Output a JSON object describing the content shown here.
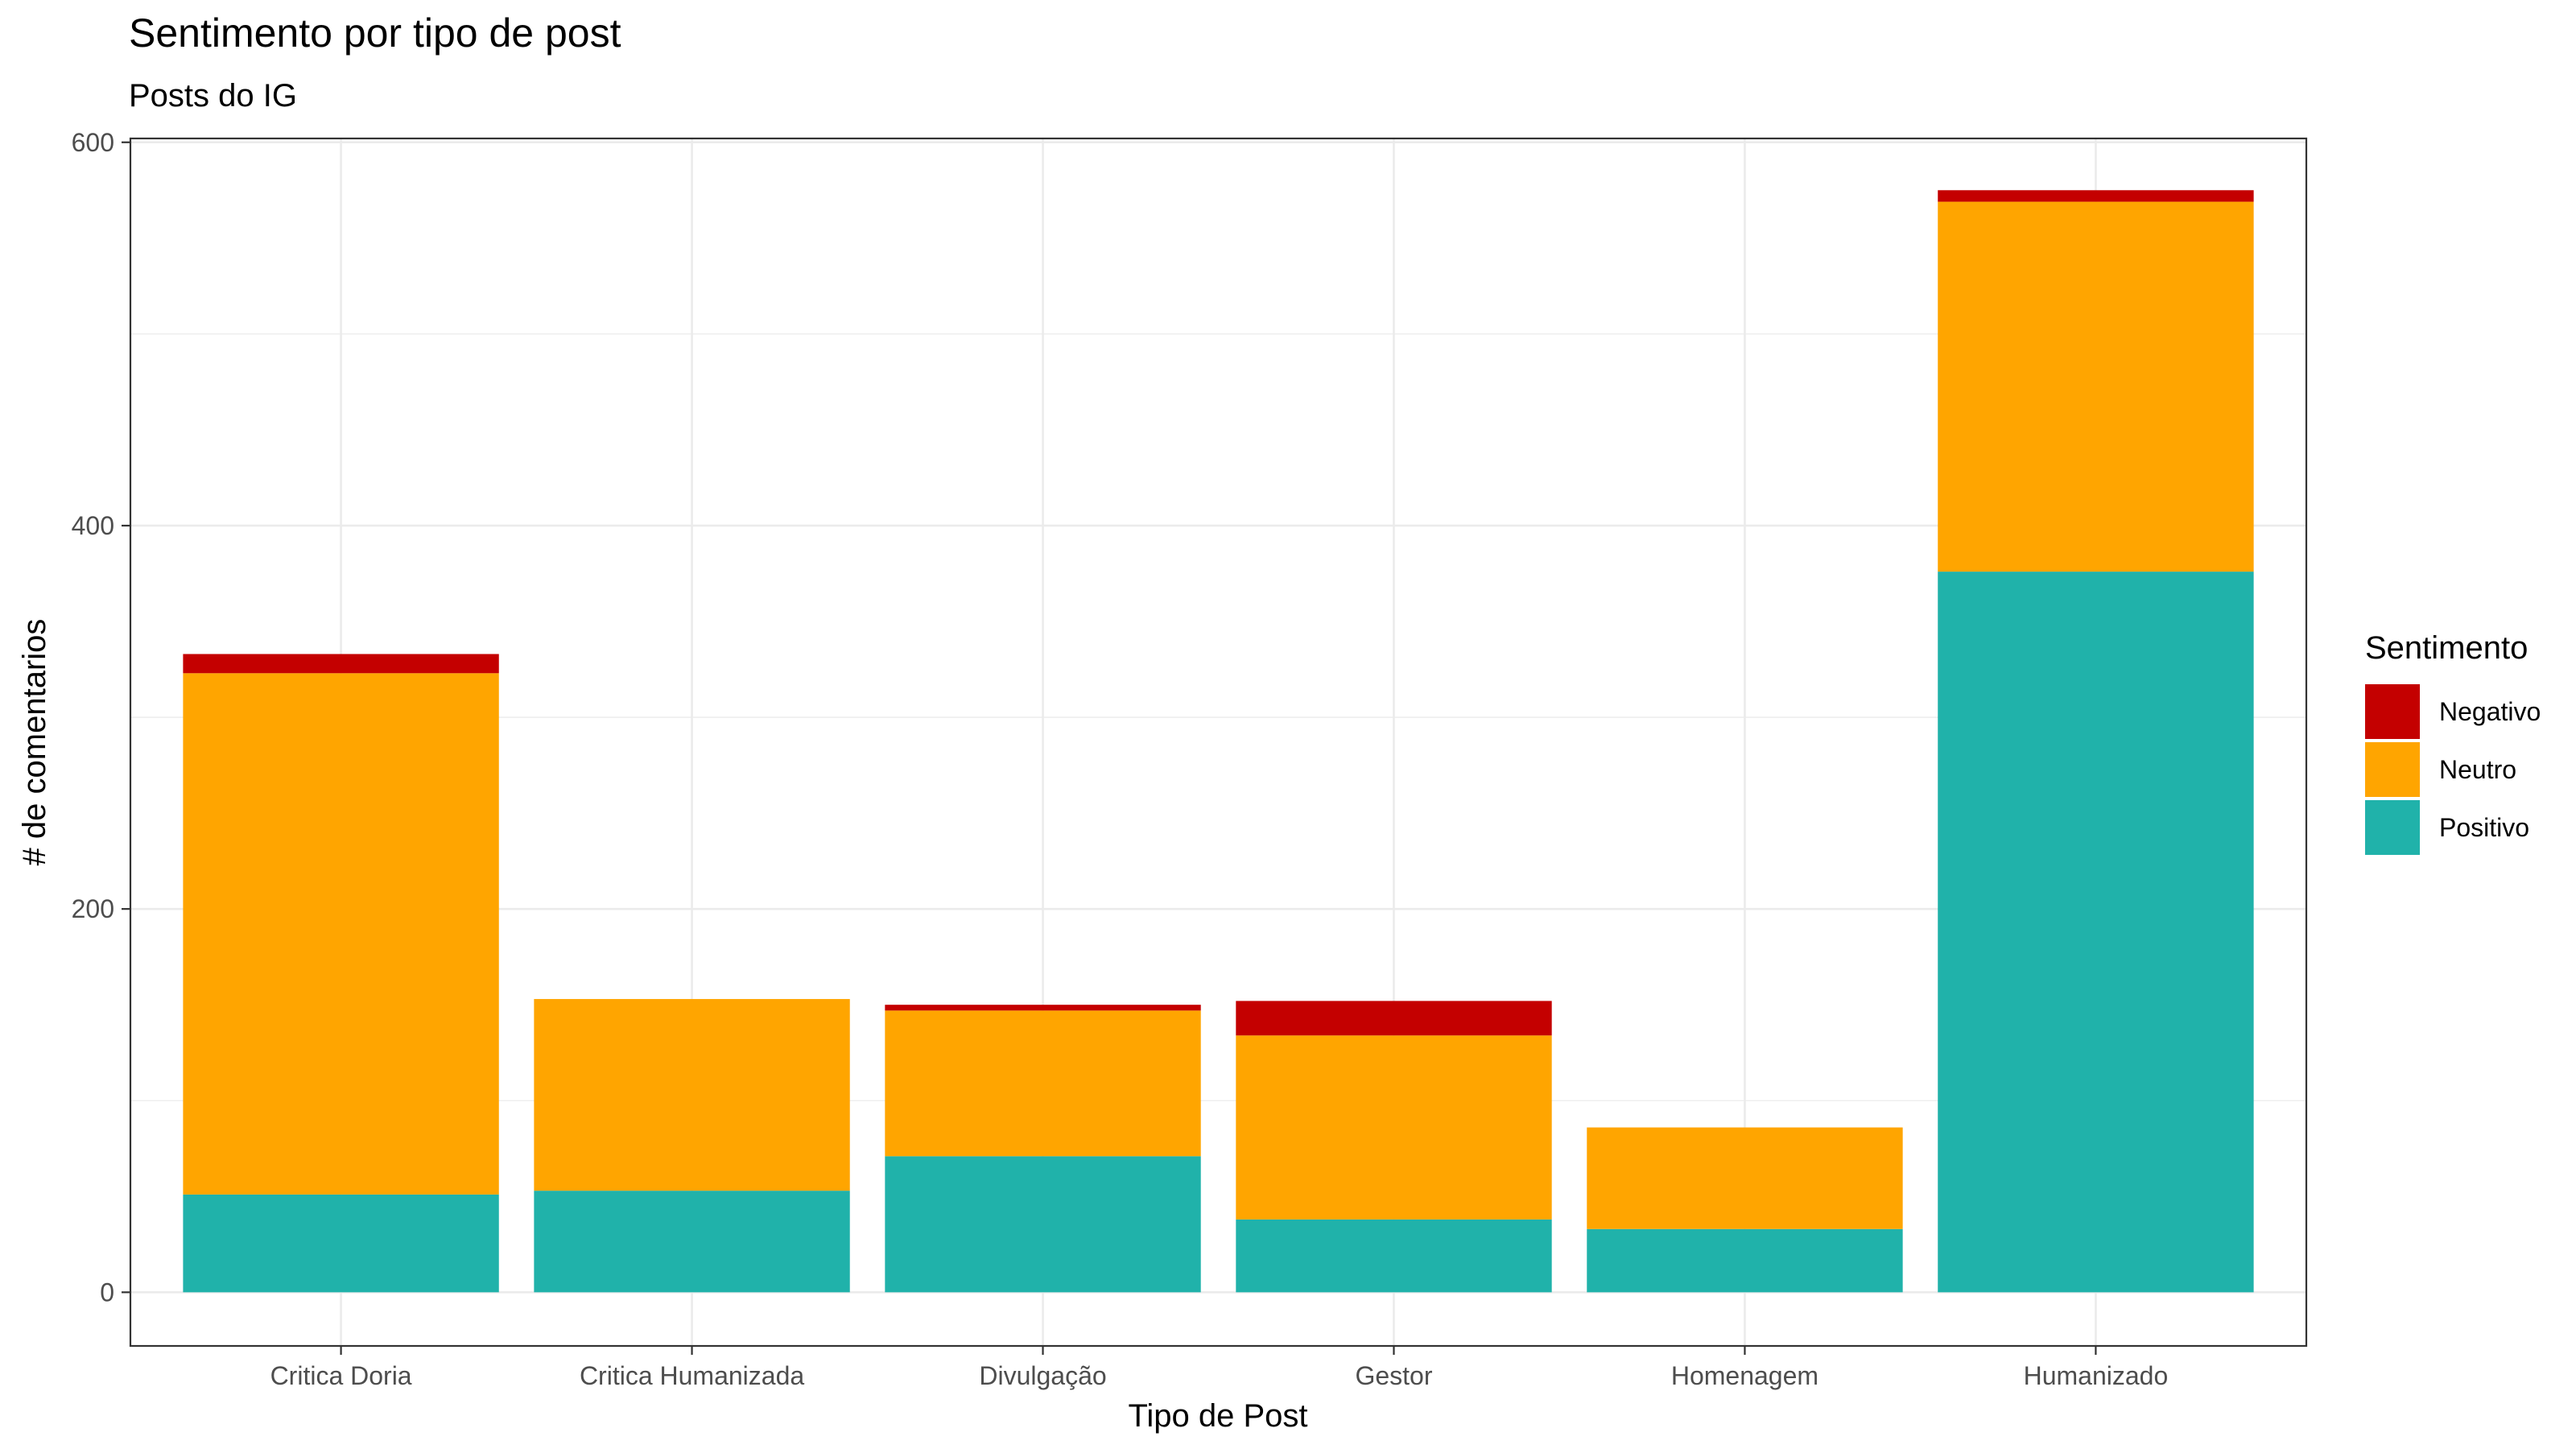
{
  "chart_data": {
    "type": "bar",
    "stacked": true,
    "title": "Sentimento por tipo de post",
    "subtitle": "Posts do  IG",
    "xlabel": "Tipo de Post",
    "ylabel": "# de comentarios",
    "categories": [
      "Critica Doria",
      "Critica Humanizada",
      "Divulgação",
      "Gestor",
      "Homenagem",
      "Humanizado"
    ],
    "ylim": [
      -28,
      602
    ],
    "yticks": [
      0,
      200,
      400,
      600
    ],
    "grid": true,
    "legend_title": "Sentimento",
    "legend_position": "right",
    "series": [
      {
        "name": "Positivo",
        "color": "#20B2AA",
        "values": [
          51,
          53,
          71,
          38,
          33,
          376
        ]
      },
      {
        "name": "Neutro",
        "color": "#FFA500",
        "values": [
          272,
          100,
          76,
          96,
          53,
          193
        ]
      },
      {
        "name": "Negativo",
        "color": "#C40000",
        "values": [
          10,
          0,
          3,
          18,
          0,
          6
        ]
      }
    ],
    "legend_order": [
      "Negativo",
      "Neutro",
      "Positivo"
    ]
  }
}
